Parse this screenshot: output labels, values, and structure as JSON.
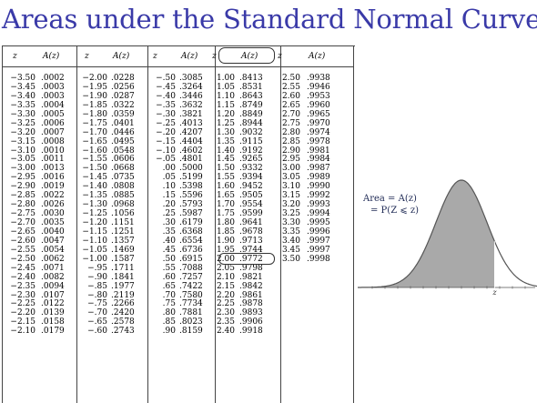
{
  "slide": {
    "title": "Areas under the Standard Normal Curve"
  },
  "table": {
    "headers": {
      "z": "z",
      "a": "A(z)"
    },
    "columns": [
      {
        "rows": [
          [
            "−3.50",
            ".0002"
          ],
          [
            "−3.45",
            ".0003"
          ],
          [
            "−3.40",
            ".0003"
          ],
          [
            "−3.35",
            ".0004"
          ],
          [
            "−3.30",
            ".0005"
          ],
          [
            "−3.25",
            ".0006"
          ],
          [
            "−3.20",
            ".0007"
          ],
          [
            "−3.15",
            ".0008"
          ],
          [
            "−3.10",
            ".0010"
          ],
          [
            "−3.05",
            ".0011"
          ],
          [
            "−3.00",
            ".0013"
          ],
          [
            "−2.95",
            ".0016"
          ],
          [
            "−2.90",
            ".0019"
          ],
          [
            "−2.85",
            ".0022"
          ],
          [
            "−2.80",
            ".0026"
          ],
          [
            "−2.75",
            ".0030"
          ],
          [
            "−2.70",
            ".0035"
          ],
          [
            "−2.65",
            ".0040"
          ],
          [
            "−2.60",
            ".0047"
          ],
          [
            "−2.55",
            ".0054"
          ],
          [
            "−2.50",
            ".0062"
          ],
          [
            "−2.45",
            ".0071"
          ],
          [
            "−2.40",
            ".0082"
          ],
          [
            "−2.35",
            ".0094"
          ],
          [
            "−2.30",
            ".0107"
          ],
          [
            "−2.25",
            ".0122"
          ],
          [
            "−2.20",
            ".0139"
          ],
          [
            "−2.15",
            ".0158"
          ],
          [
            "−2.10",
            ".0179"
          ]
        ]
      },
      {
        "rows": [
          [
            "−2.00",
            ".0228"
          ],
          [
            "−1.95",
            ".0256"
          ],
          [
            "−1.90",
            ".0287"
          ],
          [
            "−1.85",
            ".0322"
          ],
          [
            "−1.80",
            ".0359"
          ],
          [
            "−1.75",
            ".0401"
          ],
          [
            "−1.70",
            ".0446"
          ],
          [
            "−1.65",
            ".0495"
          ],
          [
            "−1.60",
            ".0548"
          ],
          [
            "−1.55",
            ".0606"
          ],
          [
            "−1.50",
            ".0668"
          ],
          [
            "−1.45",
            ".0735"
          ],
          [
            "−1.40",
            ".0808"
          ],
          [
            "−1.35",
            ".0885"
          ],
          [
            "−1.30",
            ".0968"
          ],
          [
            "−1.25",
            ".1056"
          ],
          [
            "−1.20",
            ".1151"
          ],
          [
            "−1.15",
            ".1251"
          ],
          [
            "−1.10",
            ".1357"
          ],
          [
            "−1.05",
            ".1469"
          ],
          [
            "−1.00",
            ".1587"
          ],
          [
            "−.95",
            ".1711"
          ],
          [
            "−.90",
            ".1841"
          ],
          [
            "−.85",
            ".1977"
          ],
          [
            "−.80",
            ".2119"
          ],
          [
            "−.75",
            ".2266"
          ],
          [
            "−.70",
            ".2420"
          ],
          [
            "−.65",
            ".2578"
          ],
          [
            "−.60",
            ".2743"
          ]
        ]
      },
      {
        "rows": [
          [
            "−.50",
            ".3085"
          ],
          [
            "−.45",
            ".3264"
          ],
          [
            "−.40",
            ".3446"
          ],
          [
            "−.35",
            ".3632"
          ],
          [
            "−.30",
            ".3821"
          ],
          [
            "−.25",
            ".4013"
          ],
          [
            "−.20",
            ".4207"
          ],
          [
            "−.15",
            ".4404"
          ],
          [
            "−.10",
            ".4602"
          ],
          [
            "−.05",
            ".4801"
          ],
          [
            ".00",
            ".5000"
          ],
          [
            ".05",
            ".5199"
          ],
          [
            ".10",
            ".5398"
          ],
          [
            ".15",
            ".5596"
          ],
          [
            ".20",
            ".5793"
          ],
          [
            ".25",
            ".5987"
          ],
          [
            ".30",
            ".6179"
          ],
          [
            ".35",
            ".6368"
          ],
          [
            ".40",
            ".6554"
          ],
          [
            ".45",
            ".6736"
          ],
          [
            ".50",
            ".6915"
          ],
          [
            ".55",
            ".7088"
          ],
          [
            ".60",
            ".7257"
          ],
          [
            ".65",
            ".7422"
          ],
          [
            ".70",
            ".7580"
          ],
          [
            ".75",
            ".7734"
          ],
          [
            ".80",
            ".7881"
          ],
          [
            ".85",
            ".8023"
          ],
          [
            ".90",
            ".8159"
          ]
        ]
      },
      {
        "rows": [
          [
            "1.00",
            ".8413"
          ],
          [
            "1.05",
            ".8531"
          ],
          [
            "1.10",
            ".8643"
          ],
          [
            "1.15",
            ".8749"
          ],
          [
            "1.20",
            ".8849"
          ],
          [
            "1.25",
            ".8944"
          ],
          [
            "1.30",
            ".9032"
          ],
          [
            "1.35",
            ".9115"
          ],
          [
            "1.40",
            ".9192"
          ],
          [
            "1.45",
            ".9265"
          ],
          [
            "1.50",
            ".9332"
          ],
          [
            "1.55",
            ".9394"
          ],
          [
            "1.60",
            ".9452"
          ],
          [
            "1.65",
            ".9505"
          ],
          [
            "1.70",
            ".9554"
          ],
          [
            "1.75",
            ".9599"
          ],
          [
            "1.80",
            ".9641"
          ],
          [
            "1.85",
            ".9678"
          ],
          [
            "1.90",
            ".9713"
          ],
          [
            "1.95",
            ".9744"
          ],
          [
            "2.00",
            ".9772"
          ],
          [
            "2.05",
            ".9798"
          ],
          [
            "2.10",
            ".9821"
          ],
          [
            "2.15",
            ".9842"
          ],
          [
            "2.20",
            ".9861"
          ],
          [
            "2.25",
            ".9878"
          ],
          [
            "2.30",
            ".9893"
          ],
          [
            "2.35",
            ".9906"
          ],
          [
            "2.40",
            ".9918"
          ]
        ]
      },
      {
        "rows": [
          [
            "2.50",
            ".9938"
          ],
          [
            "2.55",
            ".9946"
          ],
          [
            "2.60",
            ".9953"
          ],
          [
            "2.65",
            ".9960"
          ],
          [
            "2.70",
            ".9965"
          ],
          [
            "2.75",
            ".9970"
          ],
          [
            "2.80",
            ".9974"
          ],
          [
            "2.85",
            ".9978"
          ],
          [
            "2.90",
            ".9981"
          ],
          [
            "2.95",
            ".9984"
          ],
          [
            "3.00",
            ".9987"
          ],
          [
            "3.05",
            ".9989"
          ],
          [
            "3.10",
            ".9990"
          ],
          [
            "3.15",
            ".9992"
          ],
          [
            "3.20",
            ".9993"
          ],
          [
            "3.25",
            ".9994"
          ],
          [
            "3.30",
            ".9995"
          ],
          [
            "3.35",
            ".9996"
          ],
          [
            "3.40",
            ".9997"
          ],
          [
            "3.45",
            ".9997"
          ],
          [
            "3.50",
            ".9998"
          ]
        ]
      }
    ],
    "highlighted_cell": {
      "column": 3,
      "row": 20
    }
  },
  "figure": {
    "label_line1": "Area = A(z)",
    "label_line2": "= P(Z ⩽ z)",
    "axis_marker": "z",
    "shade_to_z": 1.3,
    "colors": {
      "curve": "#555555",
      "fill": "#a9a9a9",
      "axis": "#555555"
    }
  }
}
